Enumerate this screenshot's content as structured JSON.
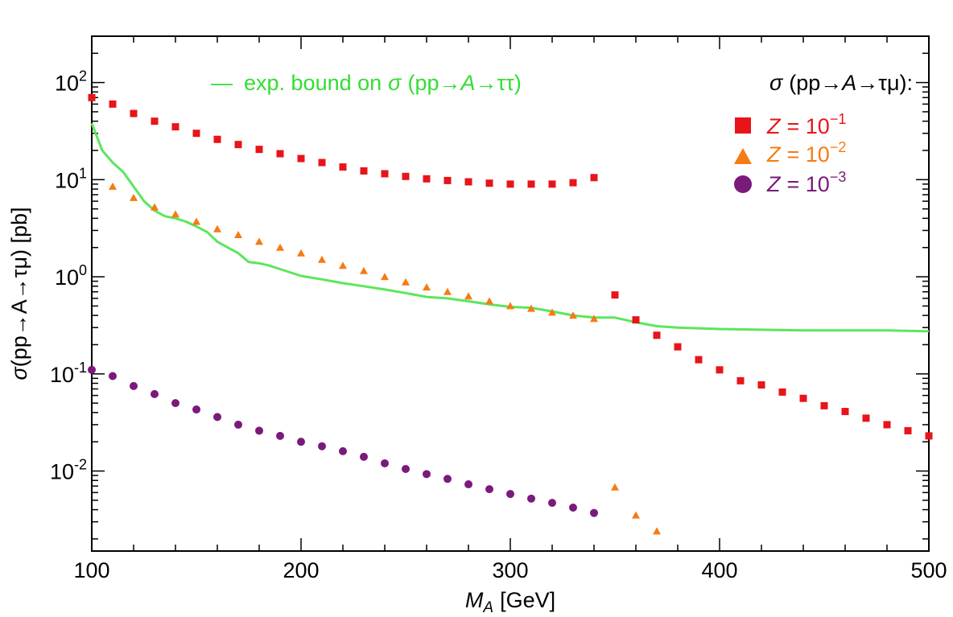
{
  "chart_data": {
    "type": "scatter",
    "xlabel": {
      "symbol": "M",
      "sub": "A",
      "unit": "[GeV]"
    },
    "ylabel": {
      "sigma": "σ",
      "process": "(pp→A→τμ) [pb]"
    },
    "xlim": [
      100,
      500
    ],
    "ylim": [
      0.0015,
      300
    ],
    "yscale": "log",
    "grid": false,
    "x_ticks": [
      100,
      200,
      300,
      400,
      500
    ],
    "x_tick_labels": [
      "100",
      "200",
      "300",
      "400",
      "500"
    ],
    "y_ticks": [
      0.01,
      0.1,
      1,
      10,
      100
    ],
    "y_tick_labels": [
      {
        "base": "10",
        "exp": "-2"
      },
      {
        "base": "10",
        "exp": "-1"
      },
      {
        "base": "10",
        "exp": "0"
      },
      {
        "base": "10",
        "exp": "1"
      },
      {
        "base": "10",
        "exp": "2"
      }
    ],
    "bound": {
      "legend": {
        "dash": "—",
        "prefix": "exp. bound on",
        "sigma": "σ",
        "p1": "(pp→",
        "A": "A",
        "p2": "→ττ)"
      },
      "color": "#5ce65c",
      "x": [
        100,
        105,
        110,
        115,
        120,
        125,
        130,
        135,
        140,
        145,
        150,
        155,
        160,
        165,
        170,
        175,
        180,
        185,
        190,
        200,
        210,
        220,
        230,
        240,
        250,
        260,
        270,
        280,
        290,
        300,
        310,
        320,
        330,
        340,
        350,
        360,
        370,
        380,
        390,
        400,
        420,
        440,
        460,
        480,
        500
      ],
      "y": [
        38,
        20,
        15,
        12,
        8.5,
        6.0,
        4.8,
        4.2,
        4.0,
        3.7,
        3.3,
        2.9,
        2.3,
        2.0,
        1.75,
        1.42,
        1.38,
        1.3,
        1.2,
        1.02,
        0.94,
        0.86,
        0.8,
        0.74,
        0.68,
        0.62,
        0.6,
        0.56,
        0.52,
        0.49,
        0.48,
        0.44,
        0.4,
        0.38,
        0.38,
        0.34,
        0.31,
        0.3,
        0.295,
        0.29,
        0.285,
        0.28,
        0.28,
        0.28,
        0.275
      ]
    },
    "legend_title": {
      "sigma": "σ",
      "p1": "(pp→",
      "A": "A",
      "p2": "→τμ):"
    },
    "series": [
      {
        "name": "Z = 10^-1",
        "legend_Z": "Z",
        "legend_eq": "= 10",
        "legend_exp": "−1",
        "marker": "square",
        "color": "#e8141a",
        "x": [
          100,
          110,
          120,
          130,
          140,
          150,
          160,
          170,
          180,
          190,
          200,
          210,
          220,
          230,
          240,
          250,
          260,
          270,
          280,
          290,
          300,
          310,
          320,
          330,
          340,
          350,
          360,
          370,
          380,
          390,
          400,
          410,
          420,
          430,
          440,
          450,
          460,
          470,
          480,
          490,
          500
        ],
        "values": [
          70,
          60,
          48,
          40,
          35,
          30,
          26,
          23,
          20.5,
          18.5,
          16.5,
          15,
          13.5,
          12.3,
          11.5,
          10.8,
          10.2,
          9.8,
          9.5,
          9.2,
          9.0,
          9.0,
          9.0,
          9.3,
          10.5,
          0.65,
          0.36,
          0.25,
          0.19,
          0.14,
          0.11,
          0.085,
          0.077,
          0.065,
          0.056,
          0.047,
          0.041,
          0.035,
          0.03,
          0.026,
          0.023
        ]
      },
      {
        "name": "Z = 10^-2",
        "legend_Z": "Z",
        "legend_eq": "= 10",
        "legend_exp": "−2",
        "marker": "triangle",
        "color": "#f57b14",
        "x": [
          110,
          120,
          130,
          140,
          150,
          160,
          170,
          180,
          190,
          200,
          210,
          220,
          230,
          240,
          250,
          260,
          270,
          280,
          290,
          300,
          310,
          320,
          330,
          340,
          350,
          360,
          370
        ],
        "values": [
          8.5,
          6.5,
          5.2,
          4.4,
          3.7,
          3.1,
          2.7,
          2.3,
          2.0,
          1.75,
          1.5,
          1.3,
          1.15,
          1.0,
          0.88,
          0.78,
          0.7,
          0.63,
          0.56,
          0.5,
          0.47,
          0.43,
          0.4,
          0.37,
          0.0068,
          0.0035,
          0.0024
        ]
      },
      {
        "name": "Z = 10^-3",
        "legend_Z": "Z",
        "legend_eq": "= 10",
        "legend_exp": "−3",
        "marker": "circle",
        "color": "#7a1a7a",
        "x": [
          100,
          110,
          120,
          130,
          140,
          150,
          160,
          170,
          180,
          190,
          200,
          210,
          220,
          230,
          240,
          250,
          260,
          270,
          280,
          290,
          300,
          310,
          320,
          330,
          340
        ],
        "values": [
          0.11,
          0.095,
          0.075,
          0.062,
          0.05,
          0.043,
          0.036,
          0.03,
          0.026,
          0.023,
          0.02,
          0.018,
          0.016,
          0.014,
          0.012,
          0.0105,
          0.0093,
          0.0083,
          0.0073,
          0.0065,
          0.0058,
          0.0052,
          0.0047,
          0.0042,
          0.0037
        ]
      }
    ]
  }
}
